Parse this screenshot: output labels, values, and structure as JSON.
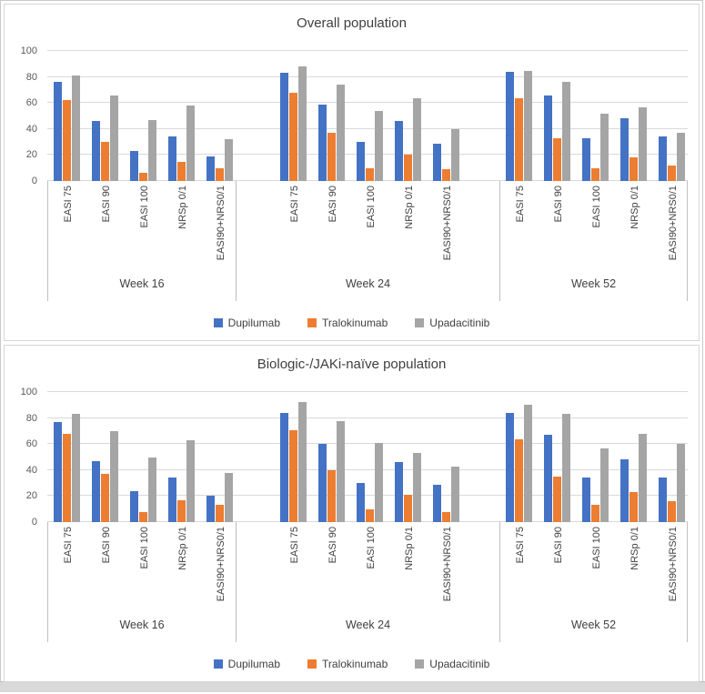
{
  "page": {
    "background": "#ffffff",
    "frame_border_color": "#c9c9c9",
    "panel_border_color": "#d6d6d6",
    "gridline_color": "#d9d9d9",
    "divider_color": "#bfbfbf",
    "text_color": "#404040",
    "tick_text_color": "#595959"
  },
  "chart_data": [
    {
      "type": "bar",
      "title": "Overall population",
      "xlabel": "",
      "ylabel": "",
      "ylim": [
        0,
        100
      ],
      "y_ticks": [
        0,
        20,
        40,
        60,
        80,
        100
      ],
      "grid": "horizontal",
      "legend_position": "bottom",
      "group_labels": [
        "Week 16",
        "Week 24",
        "Week 52"
      ],
      "categories": [
        "EASI 75",
        "EASI 90",
        "EASI 100",
        "NRSp 0/1",
        "EASI90+NRS0/1"
      ],
      "series": [
        {
          "name": "Dupilumab",
          "color": "#4472C4",
          "values": [
            [
              76,
              46,
              23,
              34,
              19
            ],
            [
              83,
              59,
              30,
              46,
              29
            ],
            [
              84,
              66,
              33,
              48,
              34
            ]
          ]
        },
        {
          "name": "Tralokinumab",
          "color": "#ED7D31",
          "values": [
            [
              62,
              30,
              6,
              15,
              10
            ],
            [
              68,
              37,
              10,
              20,
              9
            ],
            [
              64,
              33,
              10,
              18,
              12
            ]
          ]
        },
        {
          "name": "Upadacitinib",
          "color": "#A5A5A5",
          "values": [
            [
              81,
              66,
              47,
              58,
              32
            ],
            [
              88,
              74,
              54,
              64,
              40
            ],
            [
              85,
              76,
              52,
              57,
              37
            ]
          ]
        }
      ]
    },
    {
      "type": "bar",
      "title": "Biologic-/JAKi-naïve population",
      "xlabel": "",
      "ylabel": "",
      "ylim": [
        0,
        100
      ],
      "y_ticks": [
        0,
        20,
        40,
        60,
        80,
        100
      ],
      "grid": "horizontal",
      "legend_position": "bottom",
      "group_labels": [
        "Week 16",
        "Week 24",
        "Week 52"
      ],
      "categories": [
        "EASI 75",
        "EASI 90",
        "EASI 100",
        "NRSp 0/1",
        "EASI90+NRS0/1"
      ],
      "series": [
        {
          "name": "Dupilumab",
          "color": "#4472C4",
          "values": [
            [
              77,
              47,
              24,
              34,
              20
            ],
            [
              84,
              60,
              30,
              46,
              29
            ],
            [
              84,
              67,
              34,
              48,
              34
            ]
          ]
        },
        {
          "name": "Tralokinumab",
          "color": "#ED7D31",
          "values": [
            [
              68,
              37,
              8,
              17,
              13
            ],
            [
              71,
              40,
              10,
              21,
              8
            ],
            [
              64,
              35,
              13,
              23,
              16
            ]
          ]
        },
        {
          "name": "Upadacitinib",
          "color": "#A5A5A5",
          "values": [
            [
              83,
              70,
              50,
              63,
              38
            ],
            [
              92,
              78,
              61,
              53,
              43
            ],
            [
              90,
              83,
              57,
              68,
              60
            ]
          ]
        }
      ]
    }
  ]
}
